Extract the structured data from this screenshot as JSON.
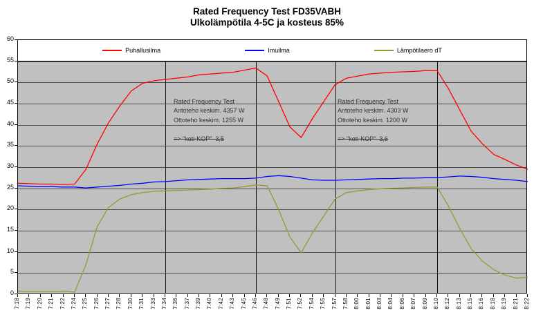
{
  "title": {
    "line1": "Rated Frequency Test FD35VABH",
    "line2": "Ulkolämpötila 4-5C ja kosteus 85%"
  },
  "legend": [
    {
      "label": "Puhallusilma",
      "color": "#ff0000"
    },
    {
      "label": "Imuilma",
      "color": "#0000ff"
    },
    {
      "label": "Lämpötilaero dT",
      "color": "#999933"
    }
  ],
  "annotations": [
    {
      "lines": [
        "Rated Frequency Test",
        "Antoteho keskim. 4357 W",
        "Ottoteho keskim. 1255 W",
        "",
        "=> \"koti-KOP\"  3,5"
      ]
    },
    {
      "lines": [
        "Rated Frequency Test",
        "Antoteho keskim. 4303 W",
        "Ottoteho keskim. 1200 W",
        "",
        "=> \"koti-KOP\"  3,6"
      ]
    }
  ],
  "chart_data": {
    "type": "line",
    "title": "Rated Frequency Test FD35VABH",
    "subtitle": "Ulkolämpötila 4-5C ja kosteus 85%",
    "xlabel": "",
    "ylabel": "",
    "ylim": [
      0,
      60
    ],
    "ytick_step": 5,
    "plot_bg": "#c0c0c0",
    "grid": "horizontal",
    "legend_position": "top",
    "x": [
      "7:18",
      "7:19",
      "7:20",
      "7:21",
      "7:22",
      "7:24",
      "7:25",
      "7:26",
      "7:27",
      "7:28",
      "7:30",
      "7:31",
      "7:33",
      "7:34",
      "7:36",
      "7:37",
      "7:39",
      "7:40",
      "7:42",
      "7:43",
      "7:45",
      "7:46",
      "7:48",
      "7:49",
      "7:51",
      "7:52",
      "7:54",
      "7:55",
      "7:57",
      "7:58",
      "8:00",
      "8:01",
      "8:03",
      "8:04",
      "8:06",
      "8:07",
      "8:09",
      "8:10",
      "8:12",
      "8:13",
      "8:15",
      "8:16",
      "8:18",
      "8:19",
      "8:21",
      "8:22"
    ],
    "series": [
      {
        "name": "Puhallusilma",
        "color": "#ff0000",
        "values": [
          26.2,
          26.1,
          26.0,
          26.0,
          25.9,
          26.0,
          29.5,
          35.5,
          40.5,
          44.5,
          48.0,
          49.8,
          50.4,
          50.7,
          51.0,
          51.3,
          51.8,
          52.0,
          52.2,
          52.4,
          52.9,
          53.4,
          51.5,
          45.5,
          39.5,
          37.0,
          41.5,
          45.5,
          49.5,
          51.0,
          51.5,
          52.0,
          52.2,
          52.4,
          52.5,
          52.6,
          52.8,
          52.8,
          48.5,
          43.5,
          38.5,
          35.5,
          33.0,
          31.8,
          30.5,
          29.5
        ]
      },
      {
        "name": "Imuilma",
        "color": "#0000ff",
        "values": [
          25.6,
          25.5,
          25.4,
          25.4,
          25.3,
          25.3,
          25.1,
          25.3,
          25.5,
          25.7,
          26.0,
          26.2,
          26.5,
          26.6,
          26.8,
          27.0,
          27.1,
          27.2,
          27.3,
          27.3,
          27.3,
          27.4,
          27.8,
          28.0,
          27.8,
          27.4,
          27.0,
          26.9,
          26.9,
          27.0,
          27.1,
          27.2,
          27.3,
          27.3,
          27.4,
          27.4,
          27.5,
          27.5,
          27.7,
          27.9,
          27.8,
          27.6,
          27.3,
          27.1,
          26.9,
          26.6
        ]
      },
      {
        "name": "Lämpötilaero dT",
        "color": "#999933",
        "values": [
          0.7,
          0.7,
          0.7,
          0.7,
          0.7,
          0.5,
          7.0,
          16.0,
          20.5,
          22.5,
          23.5,
          24.0,
          24.3,
          24.4,
          24.5,
          24.6,
          24.7,
          24.8,
          25.0,
          25.1,
          25.4,
          25.8,
          25.6,
          20.0,
          13.5,
          9.8,
          14.5,
          18.5,
          22.5,
          24.0,
          24.4,
          24.7,
          24.9,
          25.0,
          25.1,
          25.2,
          25.3,
          25.3,
          20.8,
          15.5,
          10.8,
          7.8,
          5.8,
          4.5,
          3.8,
          4.0
        ]
      }
    ],
    "vlines": [
      "7:34",
      "7:46",
      "7:57",
      "8:10"
    ]
  }
}
